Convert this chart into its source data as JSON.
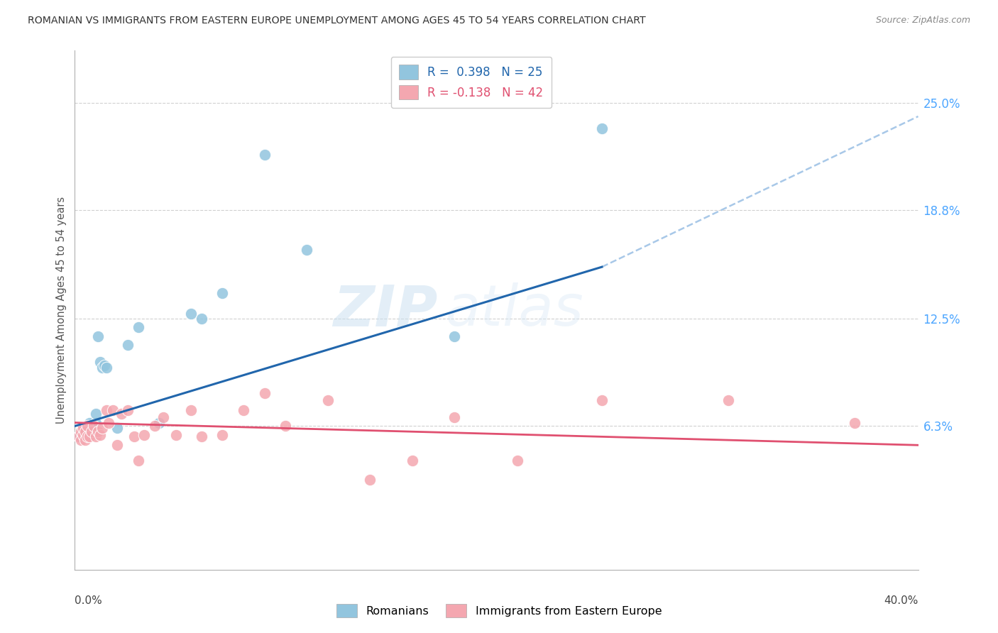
{
  "title": "ROMANIAN VS IMMIGRANTS FROM EASTERN EUROPE UNEMPLOYMENT AMONG AGES 45 TO 54 YEARS CORRELATION CHART",
  "source": "Source: ZipAtlas.com",
  "ylabel": "Unemployment Among Ages 45 to 54 years",
  "ytick_labels": [
    "25.0%",
    "18.8%",
    "12.5%",
    "6.3%"
  ],
  "ytick_values": [
    0.25,
    0.188,
    0.125,
    0.063
  ],
  "xlim": [
    0.0,
    0.4
  ],
  "ylim": [
    -0.02,
    0.28
  ],
  "watermark": "ZIPatlas",
  "blue_color": "#92c5de",
  "pink_color": "#f4a7b0",
  "line_blue": "#2166ac",
  "line_pink": "#e05070",
  "line_dashed_color": "#a8c8e8",
  "background_color": "#ffffff",
  "grid_color": "#d0d0d0",
  "romanian_x": [
    0.002,
    0.004,
    0.005,
    0.006,
    0.007,
    0.008,
    0.009,
    0.01,
    0.01,
    0.011,
    0.012,
    0.013,
    0.014,
    0.015,
    0.02,
    0.025,
    0.03,
    0.04,
    0.055,
    0.06,
    0.07,
    0.09,
    0.11,
    0.18,
    0.25
  ],
  "romanian_y": [
    0.057,
    0.058,
    0.06,
    0.06,
    0.065,
    0.063,
    0.062,
    0.065,
    0.07,
    0.115,
    0.1,
    0.097,
    0.098,
    0.097,
    0.062,
    0.11,
    0.12,
    0.065,
    0.128,
    0.125,
    0.14,
    0.22,
    0.165,
    0.115,
    0.235
  ],
  "immigrant_x": [
    0.002,
    0.003,
    0.003,
    0.004,
    0.004,
    0.005,
    0.005,
    0.006,
    0.006,
    0.007,
    0.008,
    0.009,
    0.01,
    0.011,
    0.012,
    0.013,
    0.015,
    0.016,
    0.018,
    0.02,
    0.022,
    0.025,
    0.028,
    0.03,
    0.033,
    0.038,
    0.042,
    0.048,
    0.055,
    0.06,
    0.07,
    0.08,
    0.09,
    0.1,
    0.12,
    0.14,
    0.16,
    0.18,
    0.21,
    0.25,
    0.31,
    0.37
  ],
  "immigrant_y": [
    0.057,
    0.055,
    0.06,
    0.058,
    0.062,
    0.055,
    0.06,
    0.057,
    0.063,
    0.057,
    0.06,
    0.063,
    0.057,
    0.06,
    0.058,
    0.062,
    0.072,
    0.065,
    0.072,
    0.052,
    0.07,
    0.072,
    0.057,
    0.043,
    0.058,
    0.063,
    0.068,
    0.058,
    0.072,
    0.057,
    0.058,
    0.072,
    0.082,
    0.063,
    0.078,
    0.032,
    0.043,
    0.068,
    0.043,
    0.078,
    0.078,
    0.065
  ],
  "blue_R": 0.398,
  "blue_N": 25,
  "pink_R": -0.138,
  "pink_N": 42,
  "blue_line_x_start": 0.0,
  "blue_line_x_solid_end": 0.25,
  "blue_line_x_dashed_end": 0.4,
  "blue_line_y_at_0": 0.063,
  "blue_line_y_at_025": 0.155,
  "blue_line_y_at_040": 0.242,
  "pink_line_y_at_0": 0.065,
  "pink_line_y_at_040": 0.052
}
